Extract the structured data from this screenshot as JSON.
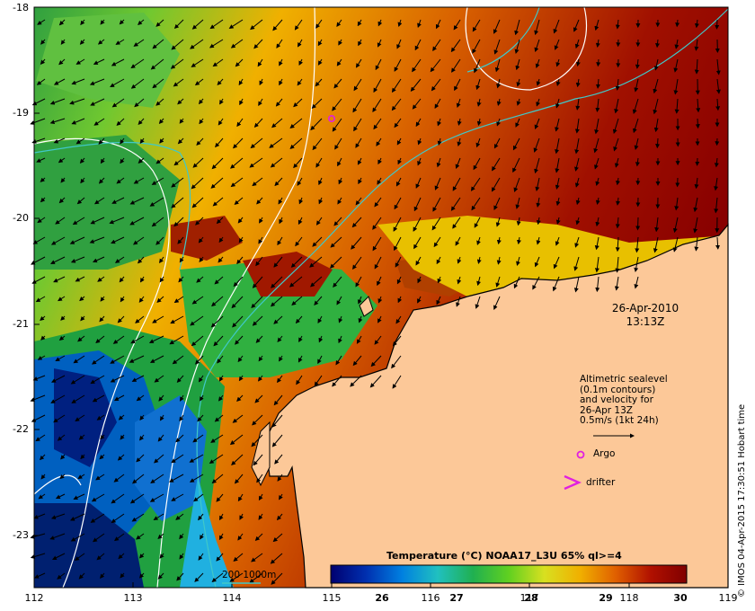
{
  "map": {
    "timestamp_date": "26-Apr-2010",
    "timestamp_time": "13:13Z",
    "y_ticks": [
      "-18",
      "-19",
      "-20",
      "-21",
      "-22",
      "-23"
    ],
    "x_ticks": [
      "112",
      "113",
      "114",
      "115",
      "116",
      "117",
      "118",
      "119"
    ],
    "colors": {
      "land": "#fcc898",
      "coastline": "#000000",
      "argo": "#e020e0",
      "contour_sealevel": "#ffffff",
      "contour_depth": "#40c8c8"
    }
  },
  "legend": {
    "lines": [
      "Altimetric sealevel",
      "(0.1m contours)",
      "and velocity for",
      "26-Apr 13Z",
      "0.5m/s (1kt 24h)"
    ],
    "argo_label": "Argo",
    "drifter_label": "drifter",
    "depth_label": "200  1000m"
  },
  "colorbar": {
    "title": "Temperature (°C) NOAA17_L3U 65% ql>=4",
    "ticks": [
      "26",
      "27",
      "28",
      "29",
      "30"
    ],
    "colors": [
      "#000080",
      "#0040c0",
      "#0090e0",
      "#20c0b0",
      "#20b040",
      "#60d020",
      "#d8e020",
      "#f0b000",
      "#e06000",
      "#b01000",
      "#800000"
    ]
  },
  "credit": "© IMOS 04-Apr-2015 17:30:51 Hobart time"
}
